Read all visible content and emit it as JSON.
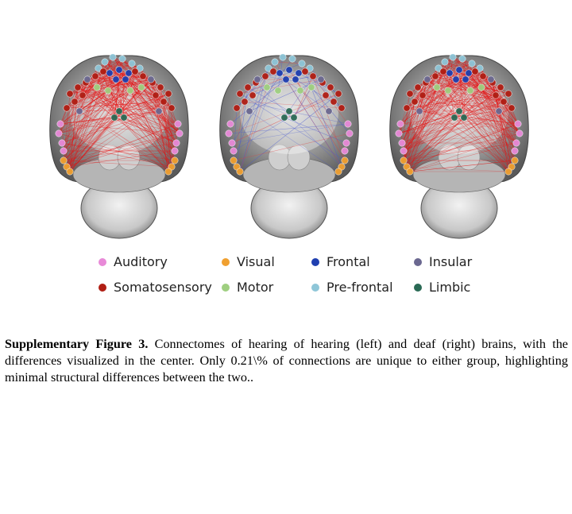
{
  "figure": {
    "panels": [
      {
        "id": "hearing",
        "edge_color": "#e01010",
        "density": "high"
      },
      {
        "id": "difference",
        "edge_color": "mixed",
        "density": "low"
      },
      {
        "id": "deaf",
        "edge_color": "#e01010",
        "density": "high"
      }
    ]
  },
  "legend": {
    "items": [
      {
        "label": "Auditory",
        "color": "#e88ad8"
      },
      {
        "label": "Visual",
        "color": "#f0a030"
      },
      {
        "label": "Frontal",
        "color": "#1f3fb0"
      },
      {
        "label": "Insular",
        "color": "#6b6890"
      },
      {
        "label": "Somatosensory",
        "color": "#b01e14"
      },
      {
        "label": "Motor",
        "color": "#9fcf80"
      },
      {
        "label": "Pre-frontal",
        "color": "#8ec6d8"
      },
      {
        "label": "Limbic",
        "color": "#2a6a55"
      }
    ]
  },
  "caption": {
    "label": "Supplementary Figure 3.",
    "text": " Connectomes of hearing of hearing (left) and deaf (right) brains, with the differences visualized in the center. Only 0.21\\% of connections are unique to either group, highlighting minimal structural differences between the two.."
  }
}
